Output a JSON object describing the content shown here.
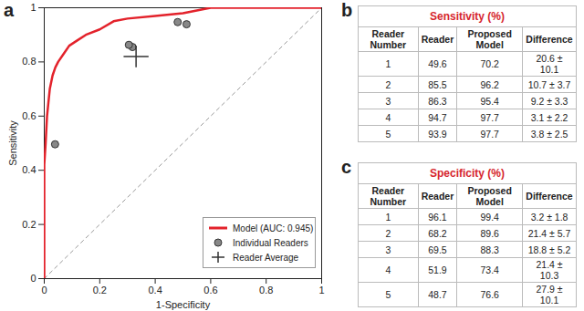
{
  "chart_data": {
    "type": "line",
    "xlabel": "1-Specificity",
    "ylabel": "Sensitivity",
    "xlim": [
      0,
      1
    ],
    "ylim": [
      0,
      1
    ],
    "xticks": [
      0,
      0.2,
      0.4,
      0.6,
      0.8,
      1
    ],
    "yticks": [
      0,
      0.2,
      0.4,
      0.6,
      0.8,
      1
    ],
    "grid": false,
    "legend": "lower right",
    "series": [
      {
        "type": "line",
        "color": "#999999",
        "line_style": "dashed",
        "x": [
          0,
          1
        ],
        "values": [
          0,
          1
        ]
      },
      {
        "name": "Model (AUC: 0.945)",
        "type": "line",
        "color": "#e3222b",
        "line_style": "solid",
        "x": [
          0,
          0,
          0.005,
          0.01,
          0.015,
          0.02,
          0.03,
          0.04,
          0.05,
          0.07,
          0.09,
          0.12,
          0.15,
          0.2,
          0.25,
          0.3,
          0.4,
          0.5,
          0.55,
          0.6,
          1
        ],
        "values": [
          0,
          0.42,
          0.5,
          0.6,
          0.65,
          0.7,
          0.75,
          0.78,
          0.8,
          0.83,
          0.86,
          0.88,
          0.9,
          0.92,
          0.95,
          0.96,
          0.97,
          0.98,
          0.99,
          1,
          1
        ]
      },
      {
        "name": "Individual Readers",
        "type": "scatter",
        "color": "#888888",
        "marker": "circle",
        "x": [
          0.039,
          0.318,
          0.305,
          0.481,
          0.513
        ],
        "values": [
          0.496,
          0.855,
          0.863,
          0.947,
          0.939
        ]
      },
      {
        "name": "Reader Average",
        "type": "errorbar",
        "color": "#333333",
        "marker": "plus",
        "x": [
          0.331
        ],
        "values": [
          0.82
        ],
        "x_error": [
          0.045
        ],
        "y_error": [
          0.04
        ]
      }
    ]
  },
  "panel_labels": [
    "a",
    "b",
    "c"
  ],
  "tables": [
    {
      "title": "Sensitivity (%)",
      "columns": [
        "Reader Number",
        "Reader",
        "Proposed Model",
        "Difference"
      ],
      "rows": [
        [
          1,
          49.6,
          70.2,
          "20.6 ± 10.1"
        ],
        [
          2,
          85.5,
          96.2,
          "10.7 ± 3.7"
        ],
        [
          3,
          86.3,
          95.4,
          "9.2 ± 3.3"
        ],
        [
          4,
          94.7,
          97.7,
          "3.1 ± 2.2"
        ],
        [
          5,
          93.9,
          97.7,
          "3.8 ± 2.5"
        ]
      ]
    },
    {
      "title": "Specificity (%)",
      "columns": [
        "Reader Number",
        "Reader",
        "Proposed Model",
        "Difference"
      ],
      "rows": [
        [
          1,
          96.1,
          99.4,
          "3.2 ± 1.8"
        ],
        [
          2,
          68.2,
          89.6,
          "21.4 ± 5.7"
        ],
        [
          3,
          69.5,
          88.3,
          "18.8 ± 5.2"
        ],
        [
          4,
          51.9,
          73.4,
          "21.4 ± 10.3"
        ],
        [
          5,
          48.7,
          76.6,
          "27.9 ± 10.1"
        ]
      ]
    }
  ]
}
